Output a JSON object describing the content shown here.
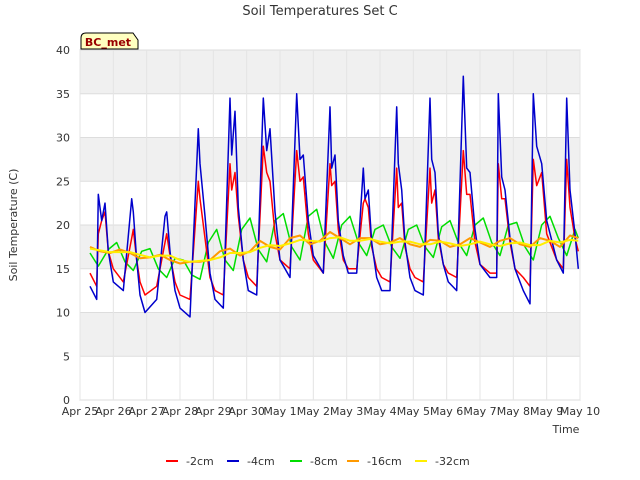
{
  "chart_data": {
    "type": "line",
    "title": "Soil Temperatures Set C",
    "xlabel": "Time",
    "ylabel": "Soil Temperature (C)",
    "ylim": [
      0,
      40
    ],
    "yticks": [
      0,
      5,
      10,
      15,
      20,
      25,
      30,
      35,
      40
    ],
    "xlim_days": [
      0,
      15
    ],
    "xtick_labels": [
      "Apr 25",
      "Apr 26",
      "Apr 27",
      "Apr 28",
      "Apr 29",
      "Apr 30",
      "May 1",
      "May 2",
      "May 3",
      "May 4",
      "May 5",
      "May 6",
      "May 7",
      "May 8",
      "May 9",
      "May 10"
    ],
    "grid": true,
    "legend_position": "bottom",
    "annotation": "BC_met",
    "series": [
      {
        "name": "-2cm",
        "color": "#ff0000",
        "x": [
          0.3,
          0.5,
          0.55,
          0.65,
          0.75,
          0.85,
          1.0,
          1.3,
          1.55,
          1.6,
          1.7,
          1.8,
          1.95,
          2.3,
          2.55,
          2.6,
          2.7,
          2.85,
          3.0,
          3.3,
          3.55,
          3.6,
          3.75,
          3.9,
          4.05,
          4.3,
          4.5,
          4.55,
          4.65,
          4.75,
          4.9,
          5.05,
          5.3,
          5.5,
          5.6,
          5.7,
          5.85,
          6.0,
          6.3,
          6.5,
          6.6,
          6.7,
          6.85,
          7.0,
          7.3,
          7.5,
          7.55,
          7.65,
          7.75,
          7.9,
          8.05,
          8.3,
          8.5,
          8.55,
          8.65,
          8.75,
          8.9,
          9.05,
          9.3,
          9.5,
          9.55,
          9.65,
          9.75,
          9.9,
          10.05,
          10.3,
          10.5,
          10.55,
          10.65,
          10.75,
          10.9,
          11.05,
          11.3,
          11.5,
          11.6,
          11.7,
          11.85,
          12.0,
          12.3,
          12.5,
          12.55,
          12.65,
          12.75,
          12.9,
          13.05,
          13.3,
          13.5,
          13.6,
          13.7,
          13.85,
          14.0,
          14.3,
          14.5,
          14.6,
          14.7,
          14.85,
          14.95
        ],
        "y": [
          14.5,
          13.0,
          19.0,
          20.5,
          21.5,
          17.0,
          15.0,
          13.5,
          18.5,
          19.5,
          16.0,
          13.5,
          12.0,
          13.0,
          18.0,
          19.0,
          16.5,
          13.5,
          12.0,
          11.5,
          25.0,
          23.0,
          18.5,
          14.0,
          12.5,
          12.0,
          27.0,
          24.0,
          26.0,
          21.0,
          16.0,
          14.0,
          13.0,
          29.0,
          26.0,
          25.0,
          19.0,
          16.0,
          15.0,
          28.5,
          25.0,
          25.5,
          19.0,
          16.0,
          14.5,
          27.0,
          24.5,
          25.0,
          19.5,
          16.0,
          15.0,
          15.0,
          22.5,
          23.0,
          22.0,
          17.5,
          15.0,
          14.0,
          13.5,
          26.5,
          22.0,
          22.5,
          17.5,
          15.0,
          14.0,
          13.5,
          26.5,
          22.5,
          24.0,
          18.5,
          15.5,
          14.5,
          14.0,
          28.5,
          23.5,
          23.5,
          18.0,
          15.5,
          14.5,
          14.5,
          27.0,
          23.0,
          23.0,
          18.0,
          15.0,
          14.0,
          13.0,
          27.5,
          24.5,
          26.0,
          19.0,
          16.0,
          15.0,
          27.5,
          22.0,
          18.5,
          17.0
        ]
      },
      {
        "name": "-4cm",
        "color": "#0000cc",
        "x": [
          0.3,
          0.5,
          0.55,
          0.65,
          0.75,
          0.85,
          1.0,
          1.3,
          1.55,
          1.6,
          1.7,
          1.8,
          1.95,
          2.3,
          2.55,
          2.6,
          2.7,
          2.85,
          3.0,
          3.3,
          3.55,
          3.6,
          3.75,
          3.9,
          4.05,
          4.3,
          4.5,
          4.55,
          4.65,
          4.75,
          4.9,
          5.05,
          5.3,
          5.5,
          5.6,
          5.7,
          5.85,
          6.0,
          6.3,
          6.5,
          6.6,
          6.7,
          6.85,
          7.0,
          7.3,
          7.5,
          7.55,
          7.65,
          7.75,
          7.9,
          8.05,
          8.3,
          8.5,
          8.55,
          8.65,
          8.75,
          8.9,
          9.05,
          9.3,
          9.5,
          9.55,
          9.65,
          9.75,
          9.9,
          10.05,
          10.3,
          10.5,
          10.55,
          10.65,
          10.75,
          10.9,
          11.05,
          11.3,
          11.5,
          11.6,
          11.7,
          11.85,
          12.0,
          12.3,
          12.5,
          12.55,
          12.65,
          12.75,
          12.9,
          13.05,
          13.3,
          13.5,
          13.6,
          13.7,
          13.85,
          14.0,
          14.3,
          14.5,
          14.6,
          14.7,
          14.85,
          14.95
        ],
        "y": [
          13.0,
          11.5,
          23.5,
          20.5,
          22.5,
          17.0,
          13.5,
          12.5,
          23.0,
          21.5,
          16.0,
          12.0,
          10.0,
          11.5,
          21.0,
          21.5,
          17.0,
          12.5,
          10.5,
          9.5,
          31.0,
          27.0,
          21.0,
          14.5,
          11.5,
          10.5,
          34.5,
          28.0,
          33.0,
          22.0,
          16.0,
          12.5,
          12.0,
          34.5,
          28.5,
          31.0,
          21.5,
          16.0,
          14.0,
          35.0,
          27.5,
          28.0,
          20.5,
          16.5,
          14.5,
          33.5,
          26.5,
          28.0,
          20.5,
          16.5,
          14.5,
          14.5,
          26.5,
          23.0,
          24.0,
          18.0,
          14.0,
          12.5,
          12.5,
          33.5,
          27.0,
          24.0,
          18.0,
          14.0,
          12.5,
          12.0,
          34.5,
          27.5,
          26.0,
          19.0,
          15.5,
          13.5,
          12.5,
          37.0,
          26.5,
          26.0,
          19.5,
          15.5,
          14.0,
          14.0,
          35.0,
          25.5,
          24.0,
          18.5,
          15.0,
          12.5,
          11.0,
          35.0,
          29.0,
          27.0,
          20.5,
          16.0,
          14.5,
          34.5,
          24.0,
          19.0,
          15.0
        ]
      },
      {
        "name": "-8cm",
        "color": "#00dd00",
        "x": [
          0.3,
          0.55,
          0.85,
          1.1,
          1.35,
          1.6,
          1.85,
          2.1,
          2.35,
          2.6,
          2.85,
          3.1,
          3.35,
          3.6,
          3.85,
          4.1,
          4.35,
          4.6,
          4.85,
          5.1,
          5.35,
          5.6,
          5.85,
          6.1,
          6.35,
          6.6,
          6.85,
          7.1,
          7.35,
          7.6,
          7.85,
          8.1,
          8.35,
          8.6,
          8.85,
          9.1,
          9.35,
          9.6,
          9.85,
          10.1,
          10.35,
          10.6,
          10.85,
          11.1,
          11.35,
          11.6,
          11.85,
          12.1,
          12.35,
          12.6,
          12.85,
          13.1,
          13.35,
          13.6,
          13.85,
          14.1,
          14.35,
          14.6,
          14.85,
          14.95
        ],
        "y": [
          16.8,
          15.3,
          17.2,
          18.0,
          15.8,
          14.8,
          17.0,
          17.3,
          15.0,
          14.0,
          16.2,
          16.0,
          14.3,
          13.8,
          18.0,
          19.5,
          16.0,
          14.8,
          19.5,
          20.8,
          17.2,
          15.8,
          20.5,
          21.3,
          17.5,
          16.0,
          21.0,
          21.8,
          18.0,
          16.2,
          20.0,
          21.0,
          18.0,
          16.5,
          19.5,
          20.0,
          17.5,
          16.2,
          19.5,
          20.0,
          17.5,
          16.3,
          19.8,
          20.5,
          18.0,
          16.5,
          20.0,
          20.8,
          18.0,
          16.5,
          20.0,
          20.3,
          17.5,
          16.0,
          20.0,
          21.0,
          18.5,
          16.5,
          19.5,
          18.5
        ]
      },
      {
        "name": "-16cm",
        "color": "#ff9900",
        "x": [
          0.3,
          0.6,
          0.9,
          1.2,
          1.5,
          1.8,
          2.1,
          2.4,
          2.7,
          3.0,
          3.3,
          3.6,
          3.9,
          4.2,
          4.5,
          4.8,
          5.1,
          5.4,
          5.7,
          6.0,
          6.3,
          6.6,
          6.9,
          7.2,
          7.5,
          7.8,
          8.1,
          8.4,
          8.7,
          9.0,
          9.3,
          9.6,
          9.9,
          10.2,
          10.5,
          10.8,
          11.1,
          11.4,
          11.7,
          12.0,
          12.3,
          12.6,
          12.9,
          13.2,
          13.5,
          13.8,
          14.1,
          14.4,
          14.7,
          14.95
        ],
        "y": [
          17.5,
          17.0,
          16.8,
          17.2,
          16.8,
          16.2,
          16.3,
          16.6,
          16.0,
          15.6,
          15.8,
          15.8,
          16.0,
          17.0,
          17.3,
          16.5,
          17.0,
          18.2,
          17.5,
          17.2,
          18.5,
          18.8,
          17.8,
          18.2,
          19.2,
          18.5,
          17.8,
          18.5,
          18.5,
          17.8,
          18.0,
          18.5,
          17.8,
          17.5,
          18.3,
          18.2,
          17.5,
          17.8,
          18.5,
          18.0,
          17.5,
          18.2,
          18.5,
          17.8,
          17.5,
          18.5,
          18.2,
          17.5,
          18.8,
          18.5
        ]
      },
      {
        "name": "-32cm",
        "color": "#ffee00",
        "x": [
          0.3,
          0.6,
          0.9,
          1.2,
          1.5,
          1.8,
          2.1,
          2.4,
          2.7,
          3.0,
          3.3,
          3.6,
          3.9,
          4.2,
          4.5,
          4.8,
          5.1,
          5.4,
          5.7,
          6.0,
          6.3,
          6.6,
          6.9,
          7.2,
          7.5,
          7.8,
          8.1,
          8.4,
          8.7,
          9.0,
          9.3,
          9.6,
          9.9,
          10.2,
          10.5,
          10.8,
          11.1,
          11.4,
          11.7,
          12.0,
          12.3,
          12.6,
          12.9,
          13.2,
          13.5,
          13.8,
          14.1,
          14.4,
          14.7,
          14.95
        ],
        "y": [
          17.3,
          17.1,
          16.9,
          16.9,
          16.9,
          16.6,
          16.3,
          16.5,
          16.5,
          16.0,
          15.8,
          15.9,
          16.0,
          16.3,
          16.8,
          16.8,
          16.9,
          17.4,
          17.7,
          17.6,
          17.9,
          18.3,
          18.2,
          18.1,
          18.5,
          18.6,
          18.2,
          18.2,
          18.4,
          18.1,
          17.9,
          18.1,
          18.1,
          17.8,
          17.8,
          18.1,
          17.9,
          17.6,
          17.8,
          18.1,
          17.8,
          17.6,
          17.9,
          18.0,
          17.7,
          17.7,
          18.2,
          18.0,
          18.3,
          18.2
        ]
      }
    ]
  }
}
